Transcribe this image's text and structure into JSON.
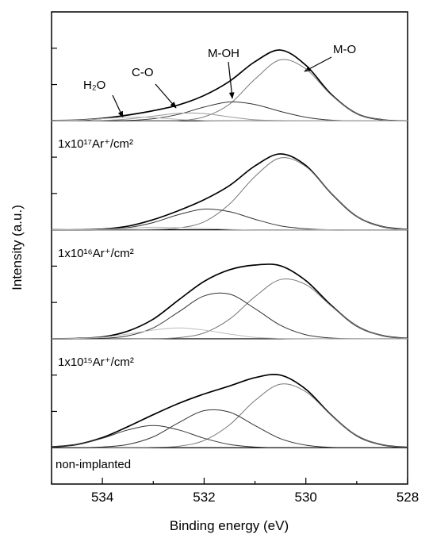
{
  "chart_data": {
    "type": "line",
    "xlabel": "Binding energy (eV)",
    "ylabel": "Intensity (a.u.)",
    "x": [
      535,
      534.5,
      534,
      533.5,
      533,
      532.5,
      532,
      531.5,
      531,
      530.5,
      530,
      529.5,
      529,
      528.5,
      528
    ],
    "xlim": [
      535,
      528
    ],
    "xticks": [
      534,
      532,
      530,
      528
    ],
    "xminorticks": [
      535,
      533,
      531,
      529
    ],
    "ylim": [
      0,
      13
    ],
    "yticks": [
      1,
      2,
      3,
      4,
      5,
      6,
      7,
      8,
      9,
      10,
      11,
      12
    ],
    "ytick_labels": false,
    "baselines": [
      10,
      7,
      4,
      1
    ],
    "panel_labels": [
      "1x10¹⁷Ar⁺/cm²",
      "1x10¹⁶Ar⁺/cm²",
      "1x10¹⁵Ar⁺/cm²",
      "non-implanted"
    ],
    "annotations": [
      "H₂O",
      "C-O",
      "M-OH",
      "M-O"
    ],
    "series": [
      {
        "color": "#000000",
        "values": [
          10.01,
          10.02,
          10.07,
          10.16,
          10.28,
          10.44,
          10.7,
          11.09,
          11.63,
          11.95,
          11.53,
          10.73,
          10.2,
          10.03,
          10
        ]
      },
      {
        "color": "#777777",
        "values": [
          10,
          10,
          10,
          10,
          10,
          10.01,
          10.11,
          10.46,
          11.15,
          11.68,
          11.43,
          10.71,
          10.2,
          10.03,
          10
        ]
      },
      {
        "color": "#333333",
        "values": [
          10,
          10,
          10,
          10.01,
          10.06,
          10.18,
          10.38,
          10.52,
          10.45,
          10.26,
          10.1,
          10.02,
          10,
          10,
          10
        ]
      },
      {
        "color": "#999999",
        "values": [
          10,
          10,
          10.01,
          10.05,
          10.13,
          10.21,
          10.2,
          10.11,
          10.03,
          10.01,
          10,
          10,
          10,
          10,
          10
        ]
      },
      {
        "color": "#bbbbbb",
        "values": [
          10.01,
          10.02,
          10.06,
          10.1,
          10.09,
          10.04,
          10.01,
          10,
          10,
          10,
          10,
          10,
          10,
          10,
          10
        ]
      },
      {
        "color": "#000000",
        "values": [
          7,
          7,
          7.02,
          7.1,
          7.28,
          7.53,
          7.83,
          8.22,
          8.76,
          9.09,
          8.77,
          8,
          7.37,
          7.09,
          7.01
        ]
      },
      {
        "color": "#777777",
        "values": [
          7,
          7,
          7,
          7,
          7.01,
          7.05,
          7.22,
          7.71,
          8.47,
          8.98,
          8.74,
          8,
          7.37,
          7.09,
          7.01
        ]
      },
      {
        "color": "#333333",
        "values": [
          7,
          7,
          7.01,
          7.06,
          7.2,
          7.42,
          7.57,
          7.5,
          7.29,
          7.11,
          7.03,
          7,
          7,
          7,
          7
        ]
      },
      {
        "color": "#bbbbbb",
        "values": [
          7,
          7,
          7.01,
          7.04,
          7.07,
          7.06,
          7.04,
          7.01,
          7,
          7,
          7,
          7,
          7,
          7,
          7
        ]
      },
      {
        "color": "#000000",
        "values": [
          4,
          4.01,
          4.05,
          4.21,
          4.54,
          5.07,
          5.58,
          5.9,
          6.03,
          6.01,
          5.6,
          4.92,
          4.35,
          4.09,
          4.01
        ]
      },
      {
        "color": "#777777",
        "values": [
          4,
          4,
          4,
          4,
          4,
          4.03,
          4.16,
          4.54,
          5.16,
          5.63,
          5.49,
          4.9,
          4.35,
          4.09,
          4.01
        ]
      },
      {
        "color": "#333333",
        "values": [
          4,
          4,
          4.01,
          4.08,
          4.3,
          4.74,
          5.18,
          5.23,
          4.83,
          4.37,
          4.11,
          4.02,
          4,
          4,
          4
        ]
      },
      {
        "color": "#bbbbbb",
        "values": [
          4,
          4.01,
          4.04,
          4.13,
          4.24,
          4.3,
          4.24,
          4.13,
          4.04,
          4.01,
          4,
          4,
          4,
          4,
          4
        ]
      },
      {
        "color": "#000000",
        "values": [
          1.02,
          1.09,
          1.28,
          1.58,
          1.91,
          2.22,
          2.48,
          2.7,
          2.93,
          3,
          2.61,
          1.9,
          1.33,
          1.08,
          1.01
        ]
      },
      {
        "color": "#777777",
        "values": [
          1,
          1,
          1,
          1,
          1.01,
          1.04,
          1.2,
          1.63,
          2.3,
          2.75,
          2.54,
          1.89,
          1.33,
          1.08,
          1.01
        ]
      },
      {
        "color": "#333333",
        "values": [
          1,
          1,
          1.02,
          1.09,
          1.3,
          1.69,
          2.02,
          1.98,
          1.61,
          1.25,
          1.07,
          1.01,
          1,
          1,
          1
        ]
      },
      {
        "color": "#333333",
        "values": [
          1.02,
          1.09,
          1.26,
          1.49,
          1.61,
          1.49,
          1.26,
          1.09,
          1.02,
          1,
          1,
          1,
          1,
          1,
          1
        ]
      }
    ]
  }
}
